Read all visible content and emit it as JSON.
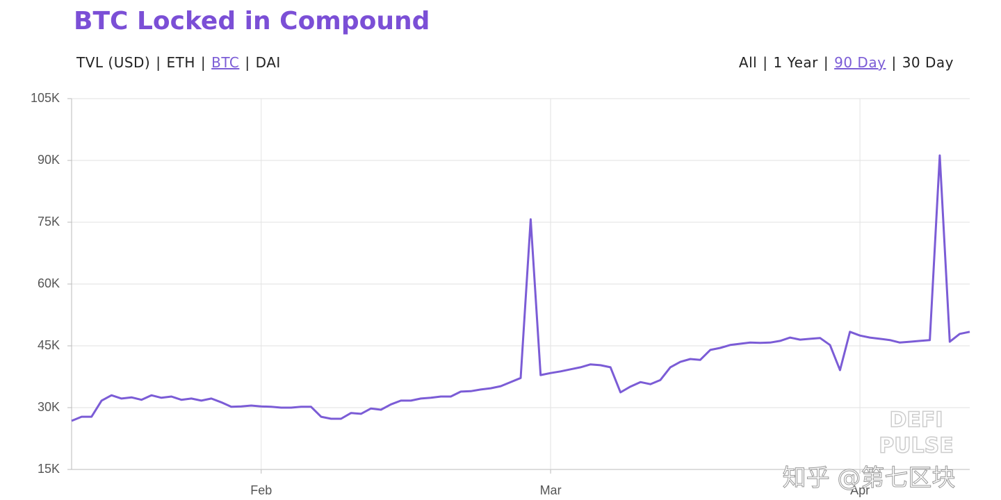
{
  "chart_data": {
    "type": "line",
    "title": "BTC Locked in Compound",
    "categories": [
      null,
      null,
      null,
      null,
      null,
      null,
      null,
      null,
      null,
      null,
      null,
      null,
      null,
      null,
      null,
      null,
      null,
      null,
      null,
      "Feb",
      null,
      null,
      null,
      null,
      null,
      null,
      null,
      null,
      null,
      null,
      null,
      null,
      null,
      null,
      null,
      null,
      null,
      null,
      null,
      null,
      null,
      null,
      null,
      null,
      null,
      null,
      null,
      null,
      "Mar",
      null,
      null,
      null,
      null,
      null,
      null,
      null,
      null,
      null,
      null,
      null,
      null,
      null,
      null,
      null,
      null,
      null,
      null,
      null,
      null,
      null,
      null,
      null,
      null,
      null,
      null,
      null,
      null,
      null,
      null,
      "Apr",
      null,
      null,
      null,
      null,
      null,
      null,
      null,
      null,
      null,
      null,
      null
    ],
    "values": [
      26800,
      27800,
      27800,
      31700,
      33000,
      32200,
      32500,
      31900,
      33000,
      32400,
      32700,
      31900,
      32200,
      31700,
      32200,
      31300,
      30200,
      30300,
      30500,
      30300,
      30200,
      30000,
      30000,
      30200,
      30200,
      27800,
      27300,
      27300,
      28700,
      28500,
      29800,
      29500,
      30800,
      31700,
      31700,
      32200,
      32400,
      32700,
      32700,
      33900,
      34000,
      34400,
      34700,
      35200,
      36200,
      37200,
      75700,
      37900,
      38400,
      38800,
      39300,
      39800,
      40500,
      40300,
      39800,
      33700,
      35100,
      36200,
      35700,
      36700,
      39800,
      41100,
      41800,
      41600,
      44000,
      44500,
      45200,
      45500,
      45800,
      45700,
      45800,
      46200,
      47000,
      46500,
      46700,
      46900,
      45200,
      39100,
      48400,
      47500,
      47000,
      46700,
      46400,
      45800,
      46000,
      46200,
      46400,
      91200,
      46000,
      47900,
      48400
    ],
    "color": "#7b5cd6",
    "ylim": [
      15000,
      105000
    ],
    "yticks": [
      {
        "value": 15000,
        "label": "15K"
      },
      {
        "value": 30000,
        "label": "30K"
      },
      {
        "value": 45000,
        "label": "45K"
      },
      {
        "value": 60000,
        "label": "60K"
      },
      {
        "value": 75000,
        "label": "75K"
      },
      {
        "value": 90000,
        "label": "90K"
      },
      {
        "value": 105000,
        "label": "105K"
      }
    ],
    "grid": true
  },
  "controls": {
    "separator": "|",
    "metrics": {
      "items": [
        "TVL (USD)",
        "ETH",
        "BTC",
        "DAI"
      ],
      "active": 2
    },
    "ranges": {
      "items": [
        "All",
        "1 Year",
        "90 Day",
        "30 Day"
      ],
      "active": 2
    }
  },
  "watermark": {
    "brand": [
      "DEFI",
      "PULSE"
    ],
    "credit": "知乎 @第七区块"
  }
}
